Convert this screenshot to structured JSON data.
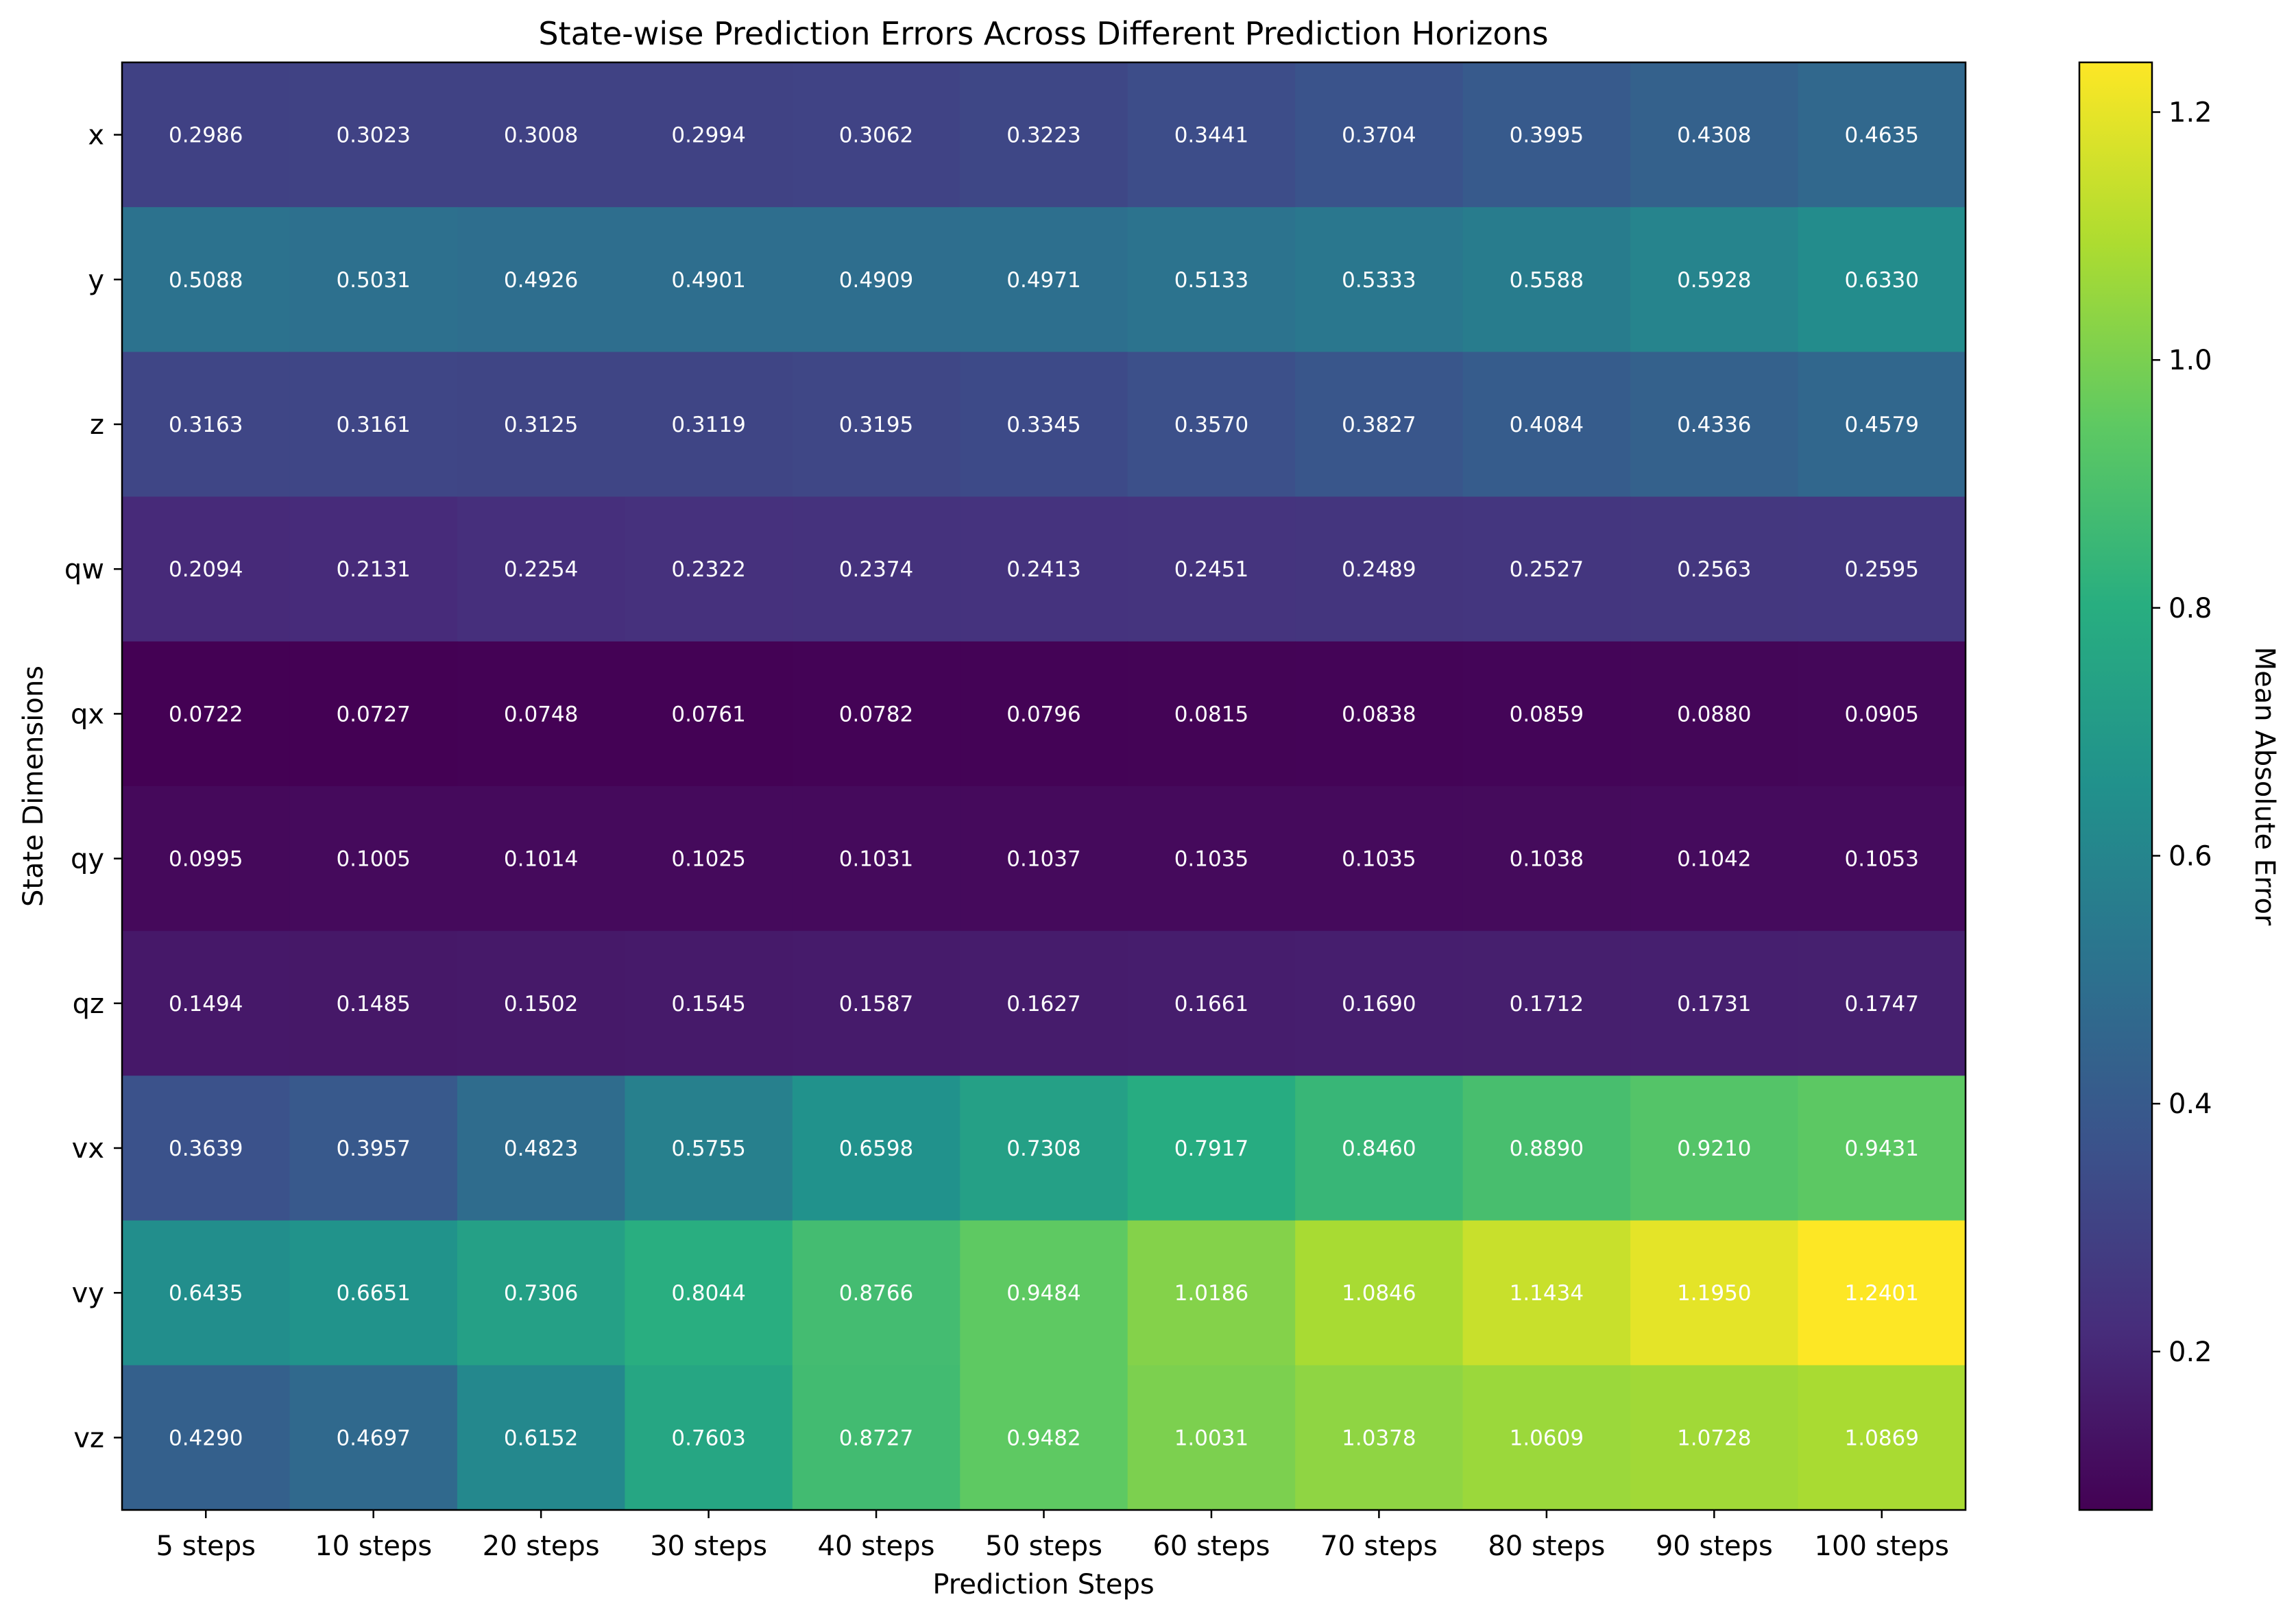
{
  "chart_data": {
    "type": "heatmap",
    "title": "State-wise Prediction Errors Across Different Prediction Horizons",
    "xlabel": "Prediction Steps",
    "ylabel": "State Dimensions",
    "colorbar_label": "Mean Absolute Error",
    "colormap": "viridis",
    "vmin": 0.0722,
    "vmax": 1.2401,
    "colorbar_ticks": [
      "0.2",
      "0.4",
      "0.6",
      "0.8",
      "1.0",
      "1.2"
    ],
    "x": [
      "5 steps",
      "10 steps",
      "20 steps",
      "30 steps",
      "40 steps",
      "50 steps",
      "60 steps",
      "70 steps",
      "80 steps",
      "90 steps",
      "100 steps"
    ],
    "y": [
      "x",
      "y",
      "z",
      "qw",
      "qx",
      "qy",
      "qz",
      "vx",
      "vy",
      "vz"
    ],
    "values": [
      [
        0.2986,
        0.3023,
        0.3008,
        0.2994,
        0.3062,
        0.3223,
        0.3441,
        0.3704,
        0.3995,
        0.4308,
        0.4635
      ],
      [
        0.5088,
        0.5031,
        0.4926,
        0.4901,
        0.4909,
        0.4971,
        0.5133,
        0.5333,
        0.5588,
        0.5928,
        0.633
      ],
      [
        0.3163,
        0.3161,
        0.3125,
        0.3119,
        0.3195,
        0.3345,
        0.357,
        0.3827,
        0.4084,
        0.4336,
        0.4579
      ],
      [
        0.2094,
        0.2131,
        0.2254,
        0.2322,
        0.2374,
        0.2413,
        0.2451,
        0.2489,
        0.2527,
        0.2563,
        0.2595
      ],
      [
        0.0722,
        0.0727,
        0.0748,
        0.0761,
        0.0782,
        0.0796,
        0.0815,
        0.0838,
        0.0859,
        0.088,
        0.0905
      ],
      [
        0.0995,
        0.1005,
        0.1014,
        0.1025,
        0.1031,
        0.1037,
        0.1035,
        0.1035,
        0.1038,
        0.1042,
        0.1053
      ],
      [
        0.1494,
        0.1485,
        0.1502,
        0.1545,
        0.1587,
        0.1627,
        0.1661,
        0.169,
        0.1712,
        0.1731,
        0.1747
      ],
      [
        0.3639,
        0.3957,
        0.4823,
        0.5755,
        0.6598,
        0.7308,
        0.7917,
        0.846,
        0.889,
        0.921,
        0.9431
      ],
      [
        0.6435,
        0.6651,
        0.7306,
        0.8044,
        0.8766,
        0.9484,
        1.0186,
        1.0846,
        1.1434,
        1.195,
        1.2401
      ],
      [
        0.429,
        0.4697,
        0.6152,
        0.7603,
        0.8727,
        0.9482,
        1.0031,
        1.0378,
        1.0609,
        1.0728,
        1.0869
      ]
    ]
  }
}
